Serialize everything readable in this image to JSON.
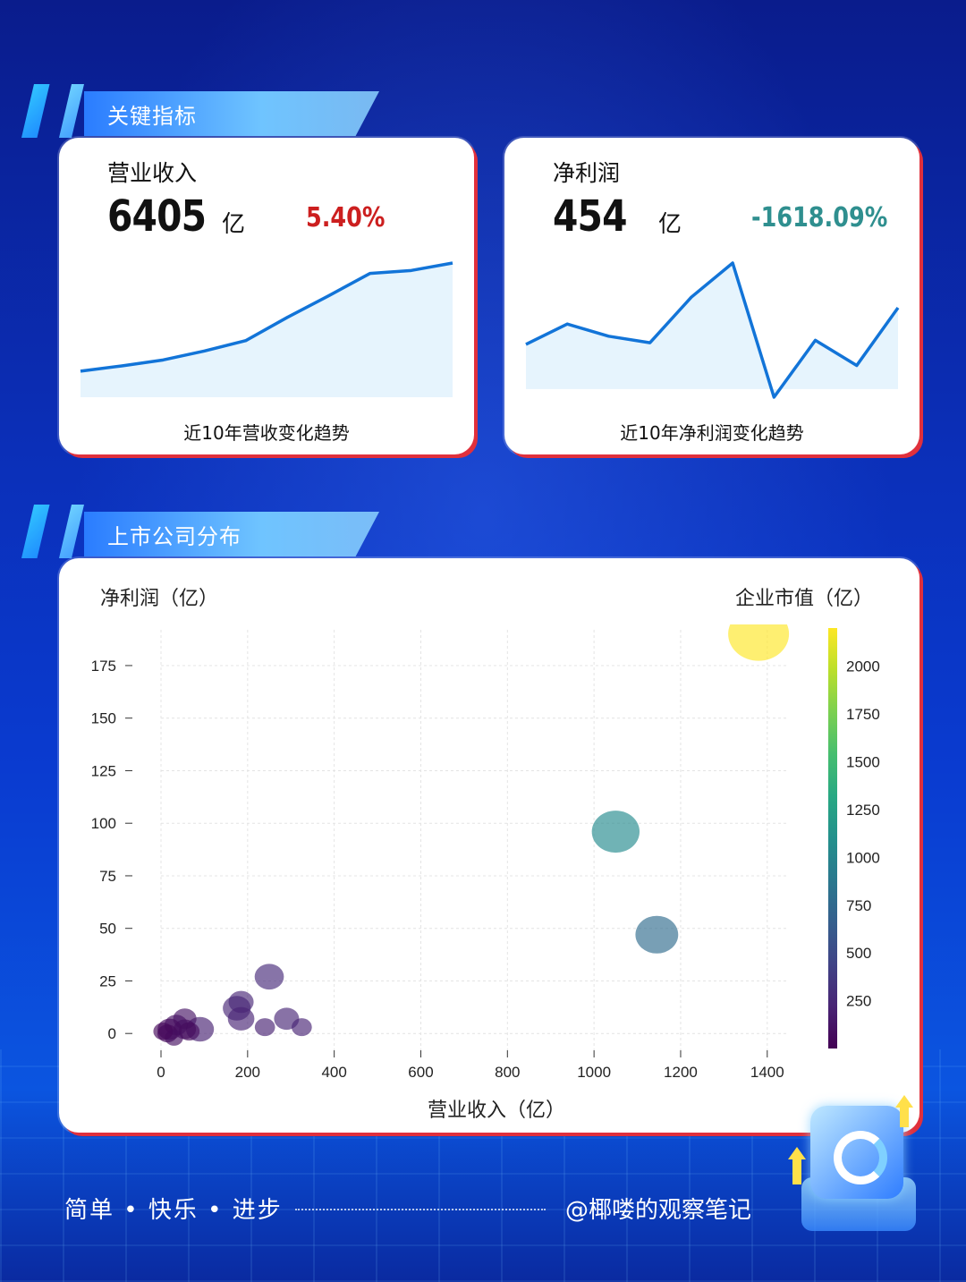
{
  "sections": {
    "key_metrics": "关键指标",
    "distribution": "上市公司分布"
  },
  "kpis": [
    {
      "title": "营业收入",
      "value": "6405",
      "unit": "亿",
      "change": "5.40%",
      "change_color": "#cc1f1f",
      "caption": "近10年营收变化趋势",
      "trend": [
        3.5,
        4.2,
        5.0,
        6.2,
        7.6,
        10.7,
        13.6,
        16.6,
        17.0,
        18.0
      ]
    },
    {
      "title": "净利润",
      "value": "454",
      "unit": "亿",
      "change": "-1618.09%",
      "change_color": "#2f8f8f",
      "caption": "近10年净利润变化趋势",
      "trend": [
        2.0,
        4.5,
        3.0,
        2.2,
        7.8,
        12.0,
        -4.5,
        2.5,
        -0.6,
        6.5
      ]
    }
  ],
  "chart_data": {
    "type": "scatter",
    "xlabel": "营业收入（亿）",
    "ylabel": "净利润（亿）",
    "colorbar_label": "企业市值（亿）",
    "xlim": [
      0,
      1450
    ],
    "ylim": [
      -8,
      192
    ],
    "xticks": [
      0,
      200,
      400,
      600,
      800,
      1000,
      1200,
      1400
    ],
    "yticks": [
      0,
      25,
      50,
      75,
      100,
      125,
      150,
      175
    ],
    "colorbar_ticks": [
      250,
      500,
      750,
      1000,
      1250,
      1500,
      1750,
      2000
    ],
    "colorbar_range": [
      0,
      2200
    ],
    "grid": true,
    "points": [
      {
        "x": 1380,
        "y": 190,
        "size": 2200,
        "color_value": 2200
      },
      {
        "x": 1050,
        "y": 96,
        "size": 1200,
        "color_value": 1050
      },
      {
        "x": 1145,
        "y": 47,
        "size": 900,
        "color_value": 760
      },
      {
        "x": 250,
        "y": 27,
        "size": 300,
        "color_value": 260
      },
      {
        "x": 175,
        "y": 12,
        "size": 260,
        "color_value": 240
      },
      {
        "x": 185,
        "y": 15,
        "size": 180,
        "color_value": 230
      },
      {
        "x": 185,
        "y": 7,
        "size": 220,
        "color_value": 220
      },
      {
        "x": 290,
        "y": 7,
        "size": 180,
        "color_value": 230
      },
      {
        "x": 240,
        "y": 3,
        "size": 80,
        "color_value": 200
      },
      {
        "x": 325,
        "y": 3,
        "size": 80,
        "color_value": 220
      },
      {
        "x": 90,
        "y": 2,
        "size": 260,
        "color_value": 200
      },
      {
        "x": 55,
        "y": 7,
        "size": 140,
        "color_value": 120
      },
      {
        "x": 55,
        "y": 2,
        "size": 120,
        "color_value": 80
      },
      {
        "x": 35,
        "y": 4,
        "size": 140,
        "color_value": 110
      },
      {
        "x": 20,
        "y": 2,
        "size": 160,
        "color_value": 60
      },
      {
        "x": 15,
        "y": 0,
        "size": 80,
        "color_value": 50
      },
      {
        "x": 30,
        "y": -2,
        "size": 50,
        "color_value": 90
      },
      {
        "x": 65,
        "y": 1,
        "size": 90,
        "color_value": 70
      },
      {
        "x": 5,
        "y": 1,
        "size": 70,
        "color_value": 40
      }
    ]
  },
  "footer": {
    "slogan": "简单 • 快乐 • 进步",
    "author": "@椰喽的观察笔记"
  }
}
